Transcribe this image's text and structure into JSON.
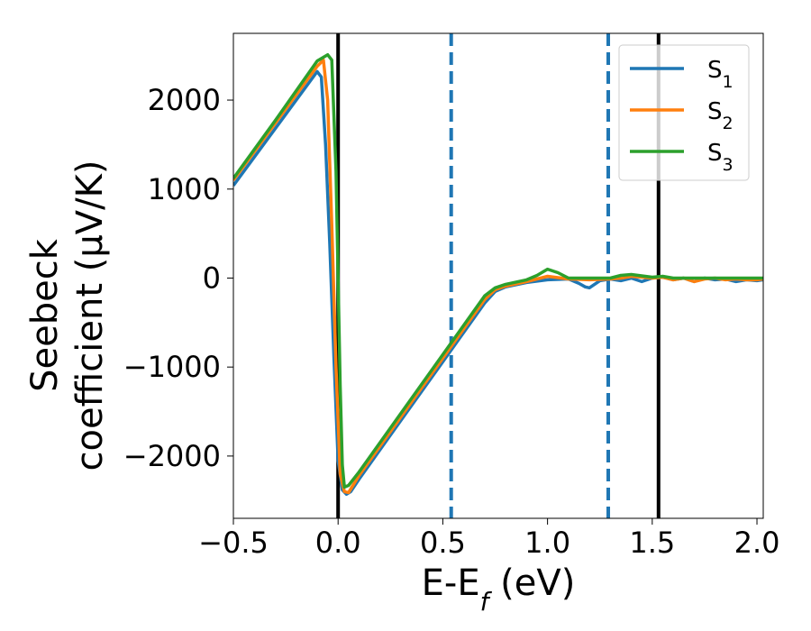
{
  "chart_data": {
    "type": "line",
    "title": "",
    "xlabel": "E-E_f (eV)",
    "ylabel_line1": "Seebeck",
    "ylabel_line2": "coefficient  (μV/K)",
    "xlim": [
      -0.5,
      2.03
    ],
    "ylim": [
      -2700,
      2750
    ],
    "xticks": [
      -0.5,
      0.0,
      0.5,
      1.0,
      1.5,
      2.0
    ],
    "xtick_labels": [
      "−0.5",
      "0.0",
      "0.5",
      "1.0",
      "1.5",
      "2.0"
    ],
    "yticks": [
      -2000,
      -1000,
      0,
      1000,
      2000
    ],
    "ytick_labels": [
      "−2000",
      "−1000",
      "0",
      "1000",
      "2000"
    ],
    "grid": false,
    "legend_position": "top-right",
    "series": [
      {
        "name": "S1",
        "color": "#1f77b4",
        "x": [
          -0.5,
          -0.3,
          -0.1,
          -0.08,
          -0.06,
          -0.04,
          -0.02,
          0.0,
          0.02,
          0.04,
          0.06,
          0.1,
          0.3,
          0.5,
          0.7,
          0.75,
          0.8,
          0.9,
          1.0,
          1.1,
          1.15,
          1.18,
          1.2,
          1.25,
          1.3,
          1.35,
          1.4,
          1.45,
          1.5,
          1.55,
          1.6,
          1.65,
          1.7,
          1.75,
          1.8,
          1.85,
          1.9,
          1.95,
          2.0,
          2.03
        ],
        "y": [
          1040,
          1680,
          2320,
          2260,
          1500,
          400,
          -900,
          -2050,
          -2380,
          -2430,
          -2400,
          -2260,
          -1600,
          -940,
          -280,
          -150,
          -100,
          -50,
          -20,
          -10,
          -60,
          -100,
          -110,
          -30,
          -10,
          -30,
          0,
          -40,
          0,
          10,
          -20,
          0,
          -40,
          0,
          -20,
          -10,
          -40,
          -20,
          -30,
          -20
        ]
      },
      {
        "name": "S2",
        "color": "#ff7f0e",
        "x": [
          -0.5,
          -0.3,
          -0.1,
          -0.07,
          -0.05,
          -0.03,
          -0.01,
          0.01,
          0.03,
          0.05,
          0.1,
          0.3,
          0.5,
          0.7,
          0.75,
          0.8,
          0.9,
          1.0,
          1.1,
          1.2,
          1.3,
          1.35,
          1.4,
          1.5,
          1.55,
          1.6,
          1.65,
          1.7,
          1.75,
          1.8,
          1.85,
          1.9,
          1.95,
          2.0,
          2.03
        ],
        "y": [
          1100,
          1740,
          2380,
          2450,
          2000,
          600,
          -1000,
          -2200,
          -2400,
          -2410,
          -2220,
          -1560,
          -900,
          -240,
          -130,
          -90,
          -40,
          20,
          -10,
          -20,
          -10,
          0,
          20,
          0,
          10,
          -20,
          0,
          -40,
          -10,
          0,
          -20,
          -10,
          -20,
          -20,
          -10
        ]
      },
      {
        "name": "S3",
        "color": "#2ca02c",
        "x": [
          -0.5,
          -0.3,
          -0.1,
          -0.05,
          -0.03,
          -0.01,
          0.01,
          0.02,
          0.03,
          0.05,
          0.1,
          0.3,
          0.5,
          0.7,
          0.75,
          0.8,
          0.9,
          0.95,
          1.0,
          1.05,
          1.1,
          1.2,
          1.3,
          1.35,
          1.4,
          1.5,
          1.55,
          1.6,
          1.7,
          1.8,
          1.9,
          2.0,
          2.03
        ],
        "y": [
          1120,
          1770,
          2440,
          2510,
          2450,
          1200,
          -1200,
          -2100,
          -2350,
          -2330,
          -2180,
          -1520,
          -860,
          -200,
          -110,
          -70,
          -20,
          30,
          100,
          60,
          0,
          0,
          0,
          30,
          40,
          10,
          20,
          0,
          0,
          0,
          0,
          0,
          0
        ]
      }
    ],
    "vertical_lines": [
      {
        "x": 0.0,
        "color": "#000000",
        "style": "solid"
      },
      {
        "x": 0.54,
        "color": "#1f77b4",
        "style": "dashed"
      },
      {
        "x": 1.29,
        "color": "#1f77b4",
        "style": "dashed"
      },
      {
        "x": 1.53,
        "color": "#000000",
        "style": "solid"
      }
    ]
  }
}
